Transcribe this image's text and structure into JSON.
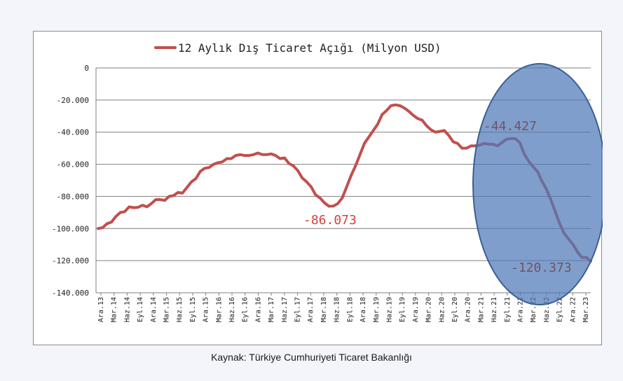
{
  "caption": "Kaynak: Türkiye Cumhuriyeti Ticaret Bakanlığı",
  "chart_data": {
    "type": "line",
    "title": "",
    "xlabel": "",
    "ylabel": "",
    "legend": {
      "position": "top",
      "label": "12 Aylık Dış Ticaret Açığı (Milyon USD)"
    },
    "grid": true,
    "ylim": [
      -140000,
      0
    ],
    "yticks": [
      0,
      -20000,
      -40000,
      -60000,
      -80000,
      -100000,
      -120000,
      -140000
    ],
    "ytick_labels": [
      "0",
      "-20.000",
      "-40.000",
      "-60.000",
      "-80.000",
      "-100.000",
      "-120.000",
      "-140.000"
    ],
    "xtick_labels": [
      "Ara.13",
      "Mar.14",
      "Haz.14",
      "Eyl.14",
      "Ara.14",
      "Mar.15",
      "Haz.15",
      "Eyl.15",
      "Ara.15",
      "Mar.16",
      "Haz.16",
      "Eyl.16",
      "Ara.16",
      "Mar.17",
      "Haz.17",
      "Eyl.17",
      "Ara.17",
      "Mar.18",
      "Haz.18",
      "Eyl.18",
      "Ara.18",
      "Mar.19",
      "Haz.19",
      "Eyl.19",
      "Ara.19",
      "Mar.20",
      "Haz.20",
      "Eyl.20",
      "Ara.20",
      "Mar.21",
      "Haz.21",
      "Eyl.21",
      "Ara.21",
      "Mar.22",
      "Haz.22",
      "Eyl.22",
      "Ara.22",
      "Mar.23"
    ],
    "series": [
      {
        "name": "12 Aylık Dış Ticaret Açığı (Milyon USD)",
        "color": "#c0504d",
        "values": [
          -100000,
          -99500,
          -97000,
          -96000,
          -92500,
          -90000,
          -89500,
          -86500,
          -87000,
          -86800,
          -85500,
          -86500,
          -84500,
          -82000,
          -82000,
          -82500,
          -80000,
          -79500,
          -77500,
          -78000,
          -74500,
          -71000,
          -69000,
          -64500,
          -62500,
          -62000,
          -60000,
          -59000,
          -58500,
          -56500,
          -56500,
          -54500,
          -54000,
          -54500,
          -54500,
          -54000,
          -53000,
          -54000,
          -54000,
          -53500,
          -54500,
          -56500,
          -56000,
          -59500,
          -61000,
          -64000,
          -68500,
          -71000,
          -74000,
          -79000,
          -81000,
          -84000,
          -86073,
          -86000,
          -84500,
          -81000,
          -74000,
          -67000,
          -61000,
          -54000,
          -47000,
          -43000,
          -39000,
          -35000,
          -29000,
          -26500,
          -23500,
          -23000,
          -23500,
          -25000,
          -27000,
          -29500,
          -31500,
          -32500,
          -36000,
          -38500,
          -40000,
          -39500,
          -39000,
          -42000,
          -46000,
          -47000,
          -50000,
          -50000,
          -48500,
          -48500,
          -48000,
          -47000,
          -47500,
          -47500,
          -48500,
          -46500,
          -44427,
          -44000,
          -44000,
          -46500,
          -53500,
          -58000,
          -61500,
          -64500,
          -70500,
          -75500,
          -82000,
          -89500,
          -97000,
          -103000,
          -106500,
          -110000,
          -114500,
          -118000,
          -118000,
          -120373
        ]
      }
    ],
    "annotations": [
      {
        "text": "-86.073",
        "value": -86073,
        "color": "#d9403a"
      },
      {
        "text": "-44.427",
        "value": -44427,
        "color": "#6b5560"
      },
      {
        "text": "-120.373",
        "value": -120373,
        "color": "#6b5560"
      }
    ],
    "highlight": {
      "shape": "ellipse",
      "fill": "#4f78b8",
      "stroke": "#3a5f96"
    }
  }
}
